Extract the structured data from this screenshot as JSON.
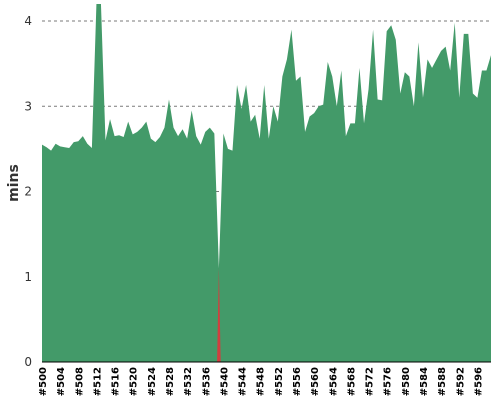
{
  "chart_data": {
    "type": "area",
    "ylabel": "mins",
    "ylim": [
      0,
      4.2
    ],
    "yticks": [
      0,
      1,
      2,
      3,
      4
    ],
    "grid": true,
    "series": [
      {
        "color": "#439a69",
        "failed_color": "#d13f3f",
        "x": [
          "#500",
          "#501",
          "#502",
          "#503",
          "#504",
          "#505",
          "#506",
          "#507",
          "#508",
          "#509",
          "#510",
          "#511",
          "#512",
          "#513",
          "#514",
          "#515",
          "#516",
          "#517",
          "#518",
          "#519",
          "#520",
          "#521",
          "#522",
          "#523",
          "#524",
          "#525",
          "#526",
          "#527",
          "#528",
          "#529",
          "#530",
          "#531",
          "#532",
          "#533",
          "#534",
          "#535",
          "#536",
          "#537",
          "#538",
          "#539",
          "#540",
          "#541",
          "#542",
          "#543",
          "#544",
          "#545",
          "#546",
          "#547",
          "#548",
          "#549",
          "#550",
          "#551",
          "#552",
          "#553",
          "#554",
          "#555",
          "#556",
          "#557",
          "#558",
          "#559",
          "#560",
          "#561",
          "#562",
          "#563",
          "#564",
          "#565",
          "#566",
          "#567",
          "#568",
          "#569",
          "#570",
          "#571",
          "#572",
          "#573",
          "#574",
          "#575",
          "#576",
          "#577",
          "#578",
          "#579",
          "#580",
          "#581",
          "#582",
          "#583",
          "#584",
          "#585",
          "#586",
          "#587",
          "#588",
          "#589",
          "#590",
          "#591",
          "#592",
          "#593",
          "#594",
          "#595",
          "#596",
          "#597",
          "#598",
          "#599"
        ],
        "values": [
          2.55,
          2.52,
          2.48,
          2.56,
          2.53,
          2.52,
          2.51,
          2.58,
          2.59,
          2.65,
          2.56,
          2.51,
          4.2,
          4.2,
          2.6,
          2.85,
          2.65,
          2.66,
          2.64,
          2.82,
          2.67,
          2.7,
          2.75,
          2.82,
          2.62,
          2.58,
          2.64,
          2.75,
          3.08,
          2.75,
          2.65,
          2.73,
          2.62,
          2.95,
          2.65,
          2.55,
          2.7,
          2.75,
          2.68,
          1.1,
          2.68,
          2.5,
          2.48,
          3.25,
          2.97,
          3.25,
          2.82,
          2.9,
          2.62,
          3.25,
          2.62,
          3.0,
          2.82,
          3.35,
          3.55,
          3.9,
          3.3,
          3.35,
          2.7,
          2.88,
          2.92,
          3.0,
          3.02,
          3.52,
          3.35,
          3.0,
          3.42,
          2.65,
          2.8,
          2.8,
          3.45,
          2.8,
          3.2,
          3.9,
          3.08,
          3.07,
          3.88,
          3.95,
          3.78,
          3.15,
          3.4,
          3.35,
          3.0,
          3.75,
          3.1,
          3.55,
          3.45,
          3.55,
          3.65,
          3.7,
          3.42,
          3.98,
          3.1,
          3.85,
          3.85,
          3.15,
          3.1,
          3.42,
          3.42,
          3.6
        ],
        "failed": [
          39
        ]
      }
    ],
    "xticks": [
      "#500",
      "#504",
      "#508",
      "#512",
      "#516",
      "#520",
      "#524",
      "#528",
      "#532",
      "#536",
      "#540",
      "#544",
      "#548",
      "#552",
      "#556",
      "#560",
      "#564",
      "#568",
      "#572",
      "#576",
      "#580",
      "#584",
      "#588",
      "#592",
      "#596"
    ]
  }
}
